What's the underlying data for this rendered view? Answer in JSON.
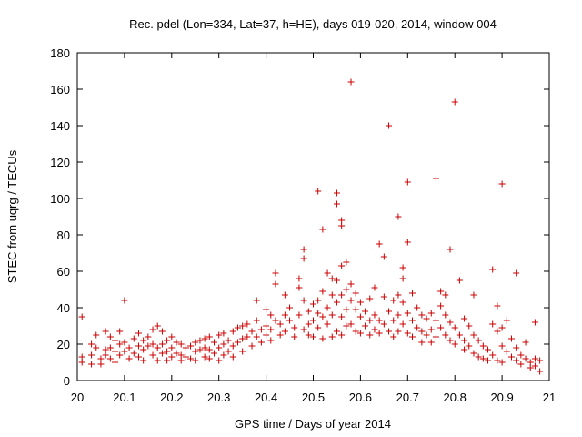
{
  "chart_data": {
    "type": "scatter",
    "title": "Rec. pdel (Lon=334, Lat=37, h=HE), days 019-020, 2014, window 004",
    "xlabel": "GPS time / Days of year 2014",
    "ylabel": "STEC from uqrg / TECUs",
    "xlim": [
      20,
      21
    ],
    "ylim": [
      0,
      180
    ],
    "xticks": [
      20,
      20.1,
      20.2,
      20.3,
      20.4,
      20.5,
      20.6,
      20.7,
      20.8,
      20.9,
      21
    ],
    "xtick_labels": [
      "20",
      "20.1",
      "20.2",
      "20.3",
      "20.4",
      "20.5",
      "20.6",
      "20.7",
      "20.8",
      "20.9",
      "21"
    ],
    "yticks": [
      0,
      20,
      40,
      60,
      80,
      100,
      120,
      140,
      160,
      180
    ],
    "ytick_labels": [
      "0",
      "20",
      "40",
      "60",
      "80",
      "100",
      "120",
      "140",
      "160",
      "180"
    ],
    "grid": false,
    "marker": "+",
    "color": "#cc0000",
    "series": [
      {
        "name": "STEC",
        "points": [
          [
            20.01,
            35
          ],
          [
            20.01,
            13
          ],
          [
            20.01,
            10
          ],
          [
            20.03,
            20
          ],
          [
            20.03,
            14
          ],
          [
            20.03,
            9
          ],
          [
            20.04,
            25
          ],
          [
            20.04,
            18
          ],
          [
            20.05,
            12
          ],
          [
            20.05,
            9
          ],
          [
            20.06,
            27
          ],
          [
            20.06,
            17
          ],
          [
            20.06,
            14
          ],
          [
            20.07,
            24
          ],
          [
            20.07,
            18
          ],
          [
            20.07,
            12
          ],
          [
            20.08,
            22
          ],
          [
            20.08,
            16
          ],
          [
            20.08,
            10
          ],
          [
            20.09,
            27
          ],
          [
            20.09,
            20
          ],
          [
            20.09,
            14
          ],
          [
            20.1,
            44
          ],
          [
            20.1,
            21
          ],
          [
            20.1,
            16
          ],
          [
            20.11,
            18
          ],
          [
            20.11,
            12
          ],
          [
            20.12,
            23
          ],
          [
            20.12,
            15
          ],
          [
            20.13,
            26
          ],
          [
            20.13,
            19
          ],
          [
            20.13,
            13
          ],
          [
            20.14,
            22
          ],
          [
            20.14,
            17
          ],
          [
            20.14,
            11
          ],
          [
            20.15,
            24
          ],
          [
            20.15,
            19
          ],
          [
            20.16,
            28
          ],
          [
            20.16,
            20
          ],
          [
            20.16,
            14
          ],
          [
            20.17,
            30
          ],
          [
            20.17,
            18
          ],
          [
            20.17,
            11
          ],
          [
            20.18,
            27
          ],
          [
            20.18,
            20
          ],
          [
            20.18,
            15
          ],
          [
            20.19,
            22
          ],
          [
            20.19,
            16
          ],
          [
            20.19,
            11
          ],
          [
            20.2,
            24
          ],
          [
            20.2,
            18
          ],
          [
            20.2,
            13
          ],
          [
            20.21,
            21
          ],
          [
            20.21,
            15
          ],
          [
            20.22,
            20
          ],
          [
            20.22,
            14
          ],
          [
            20.22,
            11
          ],
          [
            20.23,
            18
          ],
          [
            20.23,
            13
          ],
          [
            20.24,
            19
          ],
          [
            20.24,
            12
          ],
          [
            20.25,
            21
          ],
          [
            20.25,
            16
          ],
          [
            20.25,
            11
          ],
          [
            20.26,
            22
          ],
          [
            20.26,
            17
          ],
          [
            20.27,
            23
          ],
          [
            20.27,
            18
          ],
          [
            20.27,
            13
          ],
          [
            20.28,
            24
          ],
          [
            20.28,
            17
          ],
          [
            20.28,
            12
          ],
          [
            20.29,
            21
          ],
          [
            20.29,
            15
          ],
          [
            20.3,
            25
          ],
          [
            20.3,
            18
          ],
          [
            20.3,
            11
          ],
          [
            20.31,
            26
          ],
          [
            20.31,
            20
          ],
          [
            20.31,
            14
          ],
          [
            20.32,
            22
          ],
          [
            20.32,
            16
          ],
          [
            20.33,
            27
          ],
          [
            20.33,
            19
          ],
          [
            20.33,
            13
          ],
          [
            20.34,
            29
          ],
          [
            20.34,
            21
          ],
          [
            20.35,
            30
          ],
          [
            20.35,
            23
          ],
          [
            20.35,
            16
          ],
          [
            20.36,
            31
          ],
          [
            20.36,
            24
          ],
          [
            20.37,
            27
          ],
          [
            20.37,
            19
          ],
          [
            20.38,
            44
          ],
          [
            20.38,
            33
          ],
          [
            20.38,
            24
          ],
          [
            20.39,
            28
          ],
          [
            20.39,
            21
          ],
          [
            20.4,
            39
          ],
          [
            20.4,
            30
          ],
          [
            20.4,
            25
          ],
          [
            20.41,
            36
          ],
          [
            20.41,
            28
          ],
          [
            20.41,
            22
          ],
          [
            20.42,
            59
          ],
          [
            20.42,
            53
          ],
          [
            20.42,
            33
          ],
          [
            20.43,
            31
          ],
          [
            20.43,
            25
          ],
          [
            20.44,
            47
          ],
          [
            20.44,
            36
          ],
          [
            20.44,
            27
          ],
          [
            20.45,
            40
          ],
          [
            20.45,
            33
          ],
          [
            20.46,
            29
          ],
          [
            20.46,
            24
          ],
          [
            20.47,
            56
          ],
          [
            20.47,
            51
          ],
          [
            20.47,
            36
          ],
          [
            20.48,
            72
          ],
          [
            20.48,
            67
          ],
          [
            20.48,
            44
          ],
          [
            20.48,
            28
          ],
          [
            20.49,
            38
          ],
          [
            20.49,
            31
          ],
          [
            20.49,
            25
          ],
          [
            20.5,
            42
          ],
          [
            20.5,
            33
          ],
          [
            20.5,
            24
          ],
          [
            20.51,
            104
          ],
          [
            20.51,
            44
          ],
          [
            20.51,
            37
          ],
          [
            20.51,
            29
          ],
          [
            20.52,
            83
          ],
          [
            20.52,
            49
          ],
          [
            20.52,
            35
          ],
          [
            20.52,
            23
          ],
          [
            20.53,
            59
          ],
          [
            20.53,
            40
          ],
          [
            20.53,
            31
          ],
          [
            20.54,
            56
          ],
          [
            20.54,
            47
          ],
          [
            20.54,
            36
          ],
          [
            20.54,
            24
          ],
          [
            20.55,
            103
          ],
          [
            20.55,
            97
          ],
          [
            20.55,
            55
          ],
          [
            20.55,
            43
          ],
          [
            20.55,
            27
          ],
          [
            20.56,
            88
          ],
          [
            20.56,
            85
          ],
          [
            20.56,
            63
          ],
          [
            20.56,
            47
          ],
          [
            20.56,
            35
          ],
          [
            20.56,
            25
          ],
          [
            20.57,
            65
          ],
          [
            20.57,
            50
          ],
          [
            20.57,
            39
          ],
          [
            20.57,
            30
          ],
          [
            20.58,
            164
          ],
          [
            20.58,
            53
          ],
          [
            20.58,
            44
          ],
          [
            20.58,
            31
          ],
          [
            20.59,
            48
          ],
          [
            20.59,
            39
          ],
          [
            20.59,
            27
          ],
          [
            20.6,
            43
          ],
          [
            20.6,
            35
          ],
          [
            20.6,
            26
          ],
          [
            20.61,
            38
          ],
          [
            20.61,
            30
          ],
          [
            20.62,
            45
          ],
          [
            20.62,
            33
          ],
          [
            20.62,
            25
          ],
          [
            20.63,
            51
          ],
          [
            20.63,
            36
          ],
          [
            20.63,
            28
          ],
          [
            20.64,
            75
          ],
          [
            20.64,
            33
          ],
          [
            20.64,
            26
          ],
          [
            20.65,
            68
          ],
          [
            20.65,
            46
          ],
          [
            20.65,
            31
          ],
          [
            20.66,
            140
          ],
          [
            20.66,
            38
          ],
          [
            20.66,
            27
          ],
          [
            20.67,
            44
          ],
          [
            20.67,
            33
          ],
          [
            20.67,
            24
          ],
          [
            20.68,
            90
          ],
          [
            20.68,
            47
          ],
          [
            20.68,
            36
          ],
          [
            20.68,
            27
          ],
          [
            20.69,
            62
          ],
          [
            20.69,
            56
          ],
          [
            20.69,
            43
          ],
          [
            20.69,
            31
          ],
          [
            20.7,
            109
          ],
          [
            20.7,
            76
          ],
          [
            20.7,
            37
          ],
          [
            20.7,
            26
          ],
          [
            20.71,
            48
          ],
          [
            20.71,
            33
          ],
          [
            20.71,
            24
          ],
          [
            20.72,
            40
          ],
          [
            20.72,
            29
          ],
          [
            20.73,
            36
          ],
          [
            20.73,
            27
          ],
          [
            20.73,
            21
          ],
          [
            20.74,
            34
          ],
          [
            20.74,
            25
          ],
          [
            20.75,
            37
          ],
          [
            20.75,
            28
          ],
          [
            20.75,
            21
          ],
          [
            20.76,
            111
          ],
          [
            20.76,
            33
          ],
          [
            20.76,
            24
          ],
          [
            20.77,
            49
          ],
          [
            20.77,
            41
          ],
          [
            20.77,
            29
          ],
          [
            20.78,
            47
          ],
          [
            20.78,
            36
          ],
          [
            20.78,
            25
          ],
          [
            20.79,
            72
          ],
          [
            20.79,
            32
          ],
          [
            20.79,
            22
          ],
          [
            20.8,
            153
          ],
          [
            20.8,
            29
          ],
          [
            20.8,
            20
          ],
          [
            20.81,
            55
          ],
          [
            20.81,
            25
          ],
          [
            20.82,
            34
          ],
          [
            20.82,
            22
          ],
          [
            20.82,
            17
          ],
          [
            20.83,
            30
          ],
          [
            20.83,
            19
          ],
          [
            20.84,
            47
          ],
          [
            20.84,
            25
          ],
          [
            20.84,
            15
          ],
          [
            20.85,
            22
          ],
          [
            20.85,
            13
          ],
          [
            20.86,
            19
          ],
          [
            20.86,
            12
          ],
          [
            20.87,
            17
          ],
          [
            20.87,
            11
          ],
          [
            20.88,
            61
          ],
          [
            20.88,
            31
          ],
          [
            20.88,
            14
          ],
          [
            20.89,
            41
          ],
          [
            20.89,
            27
          ],
          [
            20.89,
            11
          ],
          [
            20.9,
            108
          ],
          [
            20.9,
            29
          ],
          [
            20.9,
            19
          ],
          [
            20.9,
            10
          ],
          [
            20.91,
            33
          ],
          [
            20.91,
            16
          ],
          [
            20.92,
            23
          ],
          [
            20.92,
            13
          ],
          [
            20.93,
            59
          ],
          [
            20.93,
            18
          ],
          [
            20.93,
            11
          ],
          [
            20.94,
            14
          ],
          [
            20.94,
            9
          ],
          [
            20.95,
            21
          ],
          [
            20.95,
            12
          ],
          [
            20.96,
            10
          ],
          [
            20.96,
            7
          ],
          [
            20.97,
            32
          ],
          [
            20.97,
            12
          ],
          [
            20.97,
            8
          ],
          [
            20.98,
            11
          ],
          [
            20.98,
            5
          ]
        ]
      }
    ]
  }
}
